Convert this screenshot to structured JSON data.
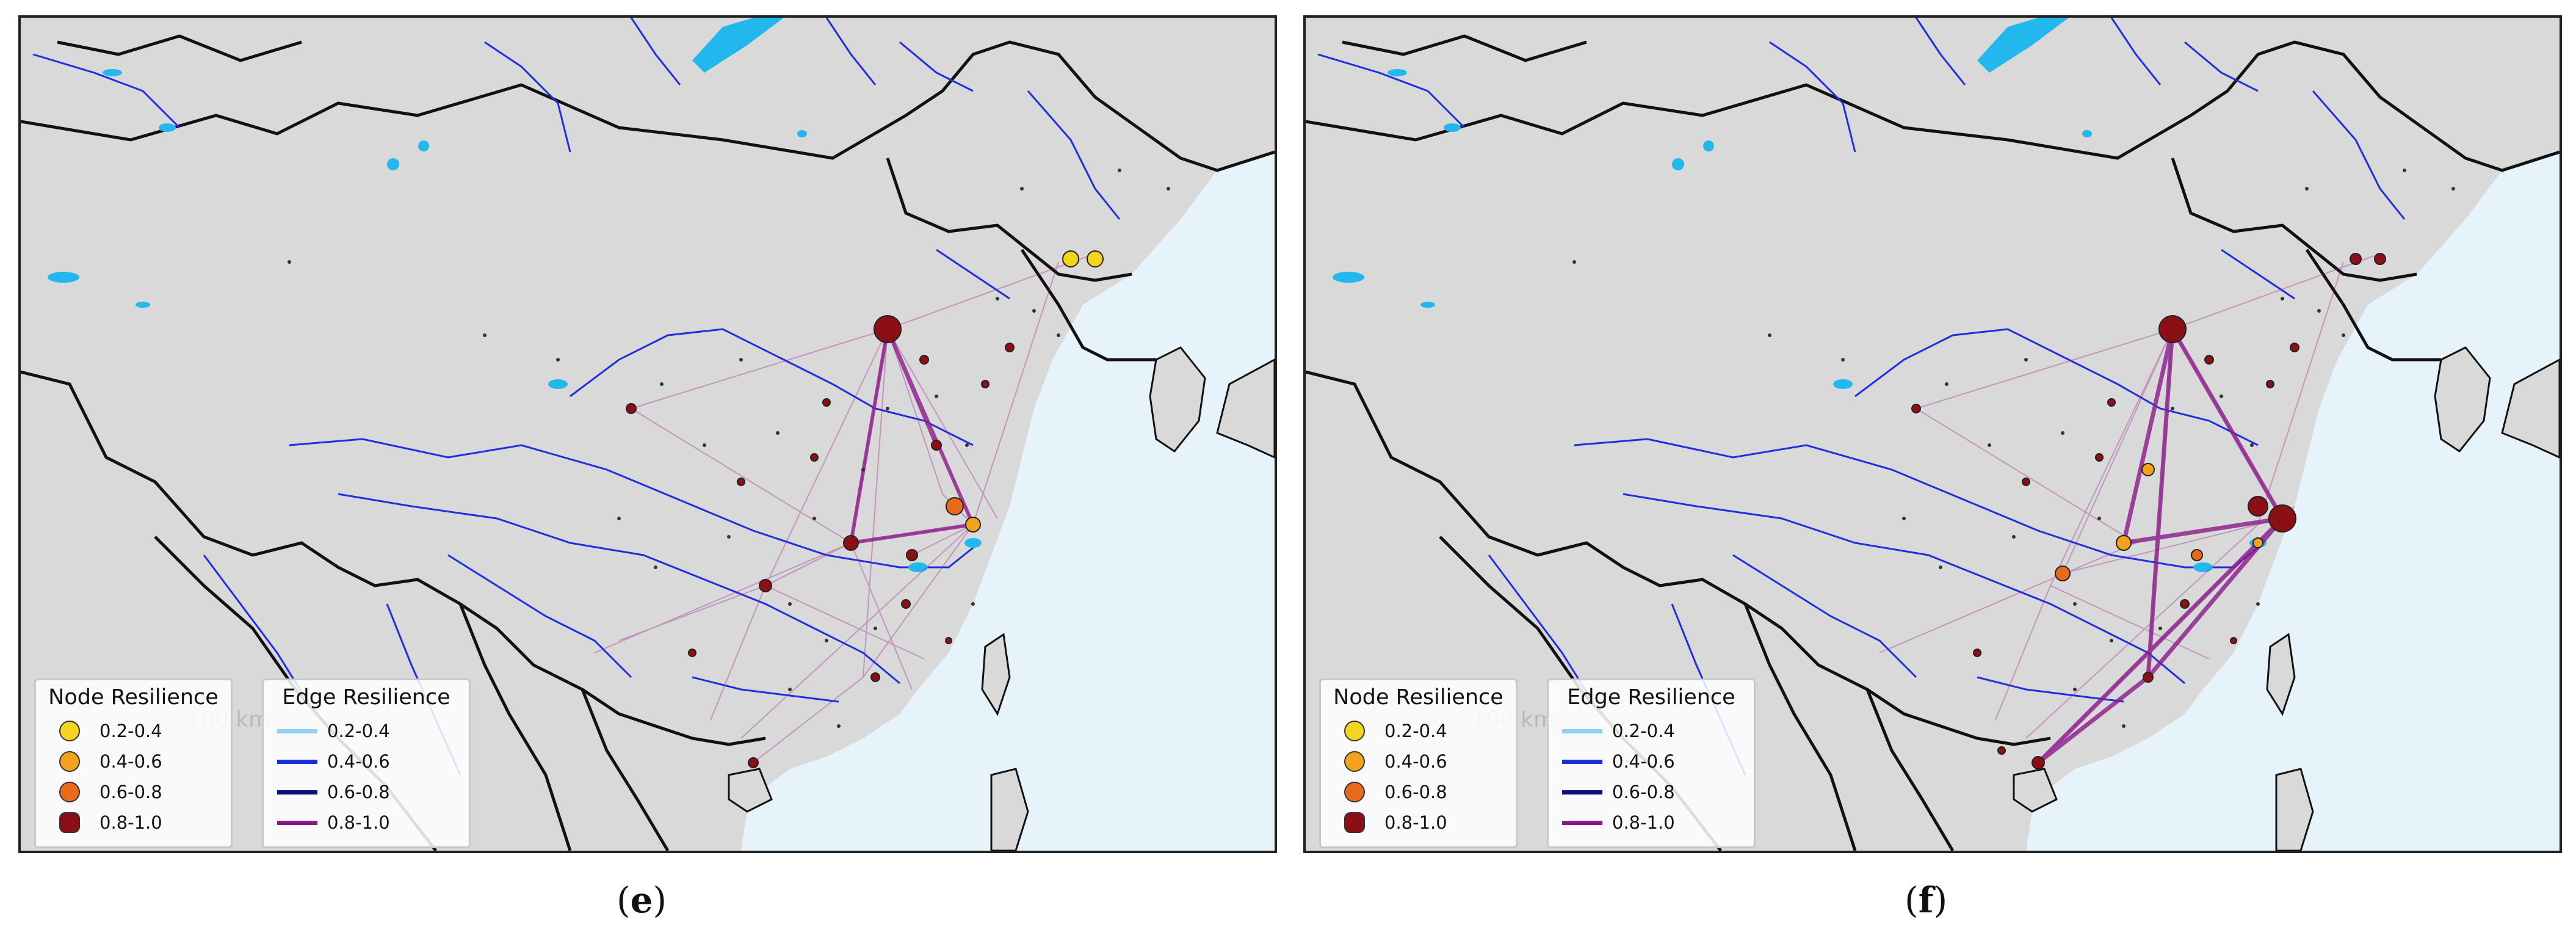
{
  "captions": {
    "e": "e",
    "f": "f"
  },
  "legend": {
    "node_title": "Node Resilience",
    "edge_title": "Edge Resilience",
    "node_items": [
      {
        "label": "0.2-0.4",
        "color": "#f6d31c"
      },
      {
        "label": "0.4-0.6",
        "color": "#f2a31b"
      },
      {
        "label": "0.6-0.8",
        "color": "#e86a1a"
      },
      {
        "label": "0.8-1.0",
        "color": "#8b0f14"
      }
    ],
    "edge_items": [
      {
        "label": "0.2-0.4",
        "color": "#8fd3f0"
      },
      {
        "label": "0.4-0.6",
        "color": "#1a2ee0"
      },
      {
        "label": "0.6-0.8",
        "color": "#0a0f7a"
      },
      {
        "label": "0.8-1.0",
        "color": "#8b1a8b"
      }
    ]
  },
  "scale_bar_fragment": "100 km",
  "colors": {
    "land": "#d9d9d9",
    "sea": "#e6f3fb",
    "border": "#111111",
    "river": "#1d2fe0",
    "lake": "#22b8ee",
    "network": "#9a1a8c"
  }
}
